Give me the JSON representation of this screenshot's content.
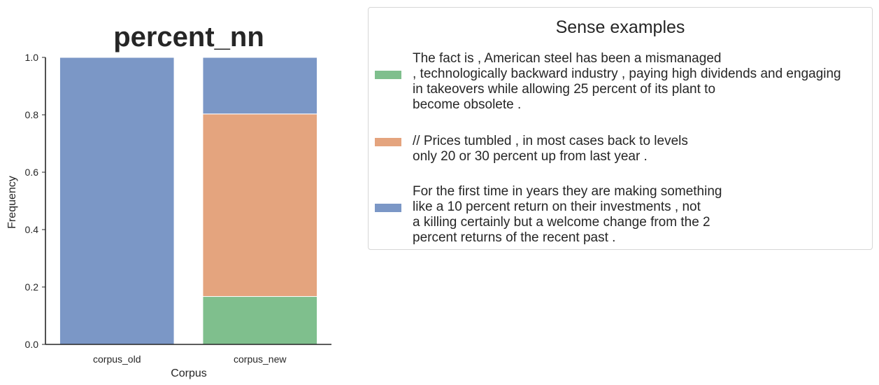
{
  "chart_data": {
    "type": "bar",
    "stacked": true,
    "normalized": true,
    "title": "percent_nn",
    "xlabel": "Corpus",
    "ylabel": "Frequency",
    "ylim": [
      0,
      1.0
    ],
    "yticks": [
      "0.0",
      "0.2",
      "0.4",
      "0.6",
      "0.8",
      "1.0"
    ],
    "categories": [
      "corpus_old",
      "corpus_new"
    ],
    "grid": false,
    "legend_placement": "outside-right",
    "series": [
      {
        "color": "#7fbf8d",
        "values": [
          0.0,
          0.167
        ]
      },
      {
        "color": "#e4a47e",
        "values": [
          0.0,
          0.636
        ]
      },
      {
        "color": "#7b97c6",
        "values": [
          1.0,
          0.197
        ]
      }
    ]
  },
  "legend": {
    "title": "Sense examples",
    "entries": [
      {
        "color": "#7fbf8d",
        "lines": [
          "The fact is , American steel has been a mismanaged",
          ", technologically backward industry , paying high dividends and engaging",
          "in takeovers while allowing 25 percent of its plant to",
          "become obsolete ."
        ]
      },
      {
        "color": "#e4a47e",
        "lines": [
          "// Prices tumbled , in most cases back to levels",
          "only 20 or 30 percent up from last year ."
        ]
      },
      {
        "color": "#7b97c6",
        "lines": [
          "For the first time in years they are making something",
          "like a 10 percent return on their investments , not",
          "a killing certainly but a welcome change from the 2",
          "percent returns of the recent past ."
        ]
      }
    ]
  }
}
